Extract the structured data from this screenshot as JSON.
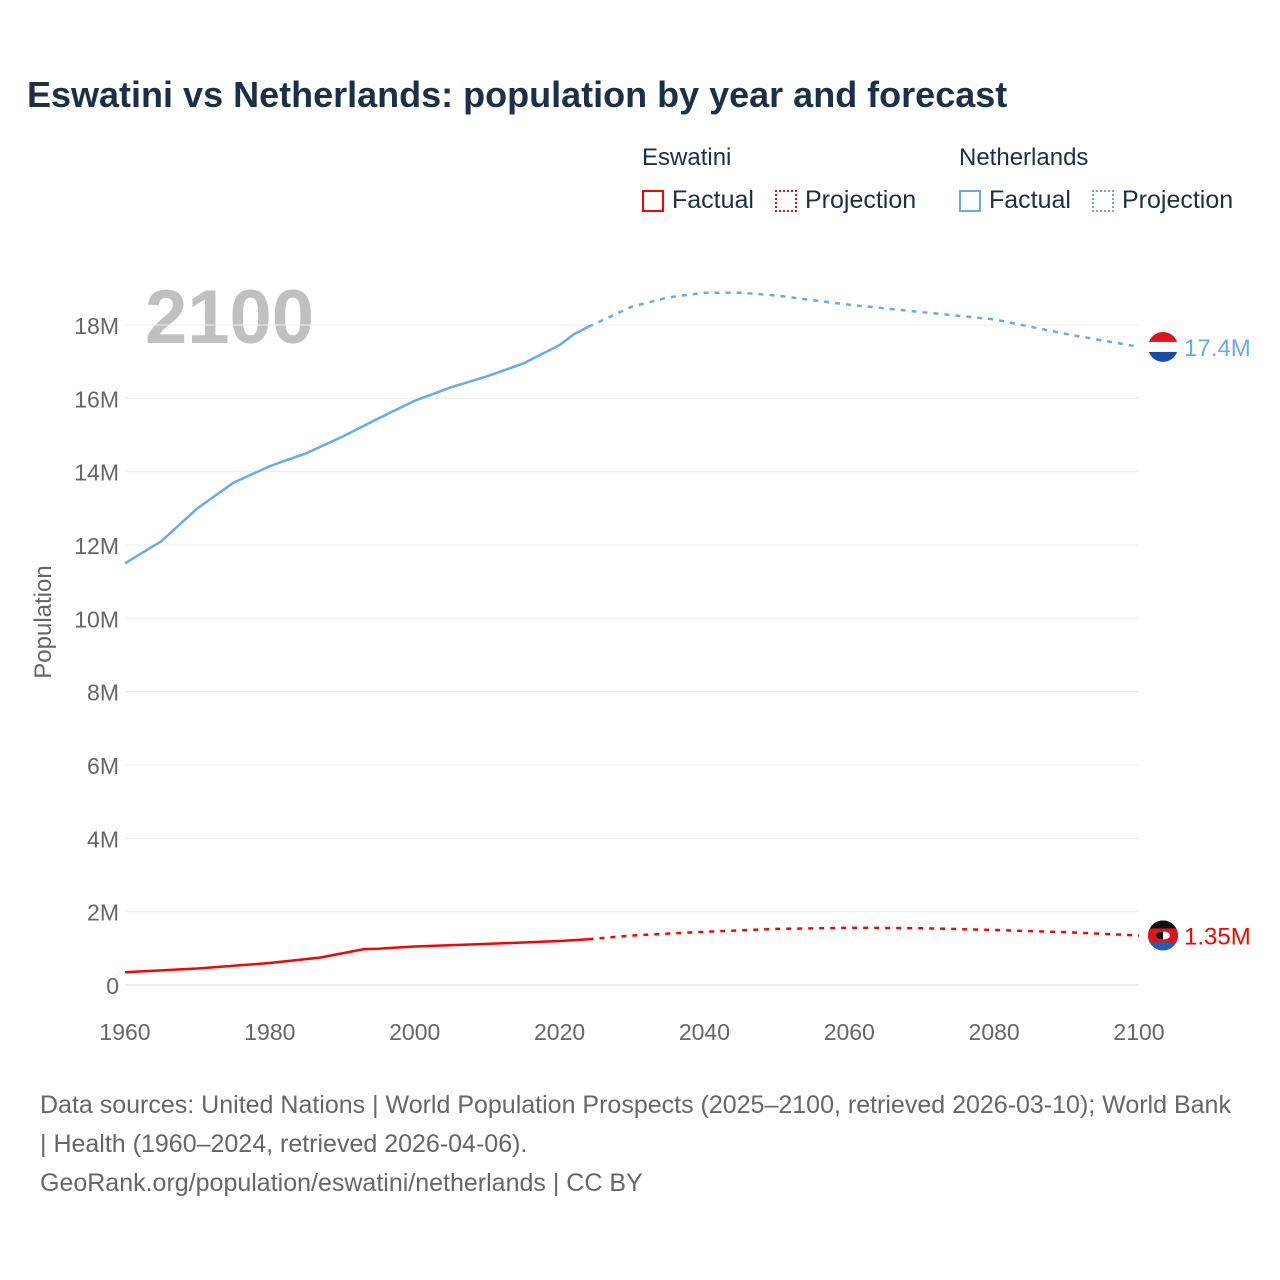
{
  "title": "Eswatini vs Netherlands: population by year and forecast",
  "legend": {
    "groups": [
      {
        "name": "Eswatini",
        "factual": "Factual",
        "projection": "Projection"
      },
      {
        "name": "Netherlands",
        "factual": "Factual",
        "projection": "Projection"
      }
    ]
  },
  "year_label": "2100",
  "sources": "Data sources: United Nations | World Population Prospects (2025–2100, retrieved 2026-03-10); World Bank | Health (1960–2024, retrieved 2026-04-06).",
  "url": "GeoRank.org/population/eswatini/netherlands | CC BY",
  "colors": {
    "eswatini": "#ff0000",
    "netherlands": "#6aaaea"
  },
  "chart_data": {
    "type": "line",
    "ylabel": "Population",
    "xlim": [
      1960,
      2100
    ],
    "ylim": [
      0,
      19
    ],
    "xticks": [
      "1960",
      "1980",
      "2000",
      "2020",
      "2040",
      "2060",
      "2080",
      "2100"
    ],
    "yticks": [
      {
        "v": 0,
        "label": "0"
      },
      {
        "v": 2,
        "label": "2M"
      },
      {
        "v": 4,
        "label": "4M"
      },
      {
        "v": 6,
        "label": "6M"
      },
      {
        "v": 8,
        "label": "8M"
      },
      {
        "v": 10,
        "label": "10M"
      },
      {
        "v": 12,
        "label": "12M"
      },
      {
        "v": 14,
        "label": "14M"
      },
      {
        "v": 16,
        "label": "16M"
      },
      {
        "v": 18,
        "label": "18M"
      }
    ],
    "series": [
      {
        "name": "Netherlands",
        "end_label": "17.4M",
        "factual": [
          [
            1960,
            11.5
          ],
          [
            1965,
            12.1
          ],
          [
            1970,
            13.0
          ],
          [
            1975,
            13.7
          ],
          [
            1980,
            14.15
          ],
          [
            1985,
            14.5
          ],
          [
            1990,
            14.95
          ],
          [
            1995,
            15.45
          ],
          [
            2000,
            15.93
          ],
          [
            2005,
            16.3
          ],
          [
            2010,
            16.6
          ],
          [
            2015,
            16.95
          ],
          [
            2020,
            17.45
          ],
          [
            2022,
            17.75
          ],
          [
            2024,
            17.95
          ]
        ],
        "projection": [
          [
            2024,
            17.95
          ],
          [
            2030,
            18.5
          ],
          [
            2035,
            18.75
          ],
          [
            2040,
            18.88
          ],
          [
            2045,
            18.88
          ],
          [
            2050,
            18.8
          ],
          [
            2060,
            18.55
          ],
          [
            2070,
            18.35
          ],
          [
            2080,
            18.15
          ],
          [
            2090,
            17.75
          ],
          [
            2100,
            17.4
          ]
        ]
      },
      {
        "name": "Eswatini",
        "end_label": "1.35M",
        "factual": [
          [
            1960,
            0.35
          ],
          [
            1970,
            0.45
          ],
          [
            1980,
            0.6
          ],
          [
            1987,
            0.75
          ],
          [
            1993,
            0.98
          ],
          [
            1995,
            0.99
          ],
          [
            2000,
            1.05
          ],
          [
            2010,
            1.12
          ],
          [
            2020,
            1.2
          ],
          [
            2024,
            1.25
          ]
        ],
        "projection": [
          [
            2024,
            1.25
          ],
          [
            2030,
            1.35
          ],
          [
            2040,
            1.45
          ],
          [
            2050,
            1.53
          ],
          [
            2060,
            1.56
          ],
          [
            2070,
            1.55
          ],
          [
            2080,
            1.5
          ],
          [
            2090,
            1.44
          ],
          [
            2100,
            1.35
          ]
        ]
      }
    ]
  }
}
